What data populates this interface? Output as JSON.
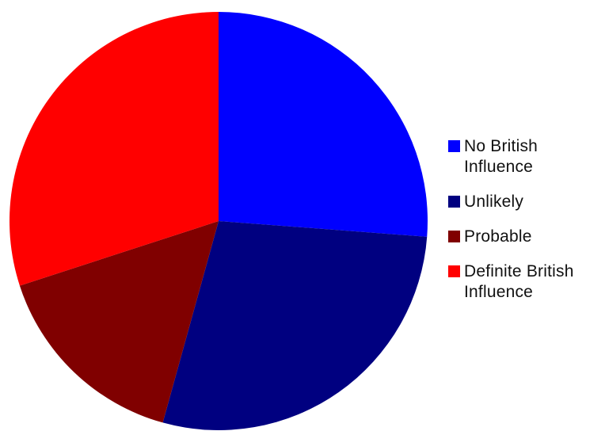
{
  "chart_data": {
    "type": "pie",
    "title": "",
    "start_angle_deg": 0,
    "direction": "clockwise",
    "slices": [
      {
        "name": "No British Influence",
        "value": 26.2,
        "color": "#0000ff"
      },
      {
        "name": "Unlikely",
        "value": 28.1,
        "color": "#000080"
      },
      {
        "name": "Probable",
        "value": 15.7,
        "color": "#800000"
      },
      {
        "name": "Definite British Influence",
        "value": 30.0,
        "color": "#ff0000"
      }
    ],
    "legend": {
      "placement": "right",
      "entries": [
        "No British Influence",
        "Unlikely",
        "Probable",
        "Definite British Influence"
      ]
    }
  }
}
